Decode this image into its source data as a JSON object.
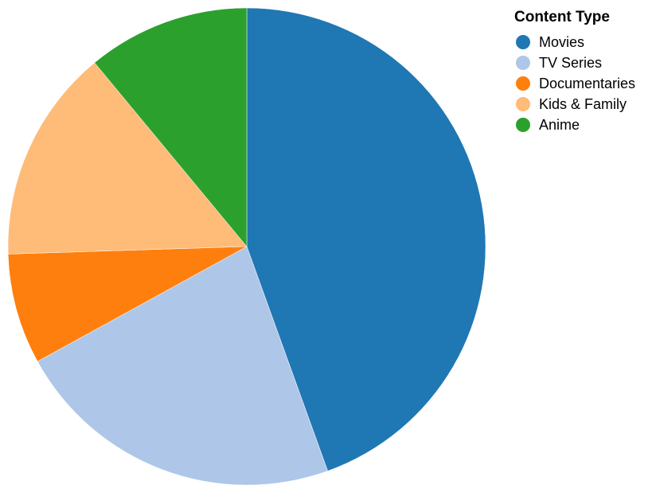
{
  "chart_data": {
    "type": "pie",
    "legend_title": "Content Type",
    "legend_position": "top-right",
    "start_angle_deg": 0,
    "direction": "clockwise",
    "slices": [
      {
        "label": "Movies",
        "value": 44.5,
        "color": "#1f77b4"
      },
      {
        "label": "TV Series",
        "value": 22.5,
        "color": "#aec7e8"
      },
      {
        "label": "Documentaries",
        "value": 7.5,
        "color": "#ff7f0e"
      },
      {
        "label": "Kids & Family",
        "value": 14.5,
        "color": "#ffbb78"
      },
      {
        "label": "Anime",
        "value": 11.0,
        "color": "#2ca02c"
      }
    ]
  }
}
